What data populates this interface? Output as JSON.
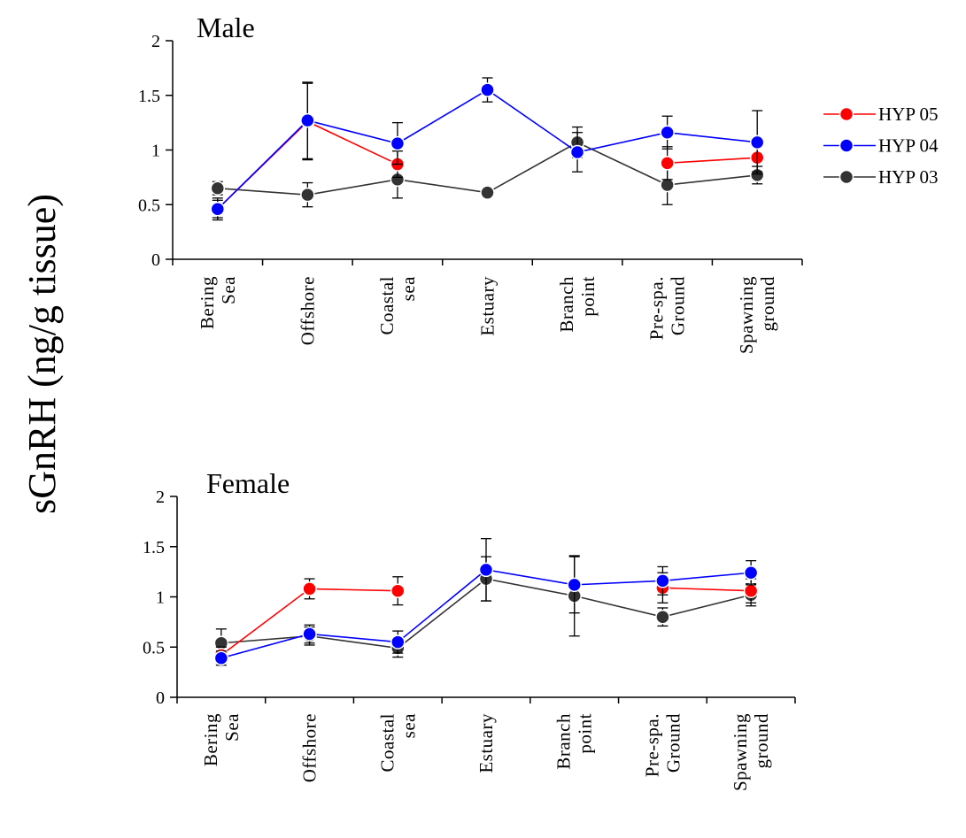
{
  "figure": {
    "ylabel": "sGnRH (ng/g tissue)"
  },
  "legend": {
    "position": "right",
    "entries": [
      {
        "series": "HYP 05",
        "color": "#ff0000"
      },
      {
        "series": "HYP 04",
        "color": "#0000ff"
      },
      {
        "series": "HYP 03",
        "color": "#333333"
      }
    ]
  },
  "chart_data": [
    {
      "type": "line",
      "title": "Male",
      "ylim": [
        0,
        2
      ],
      "yticks": [
        "0",
        "0.5",
        "1",
        "1.5",
        "2"
      ],
      "grid": false,
      "categories": [
        [
          "Bering",
          "Sea"
        ],
        [
          "Offshore"
        ],
        [
          "Coastal",
          "sea"
        ],
        [
          "Estuary"
        ],
        [
          "Branch",
          "point"
        ],
        [
          "Pre-spa.",
          "Ground"
        ],
        [
          "Spawning",
          "ground"
        ]
      ],
      "series": [
        {
          "name": "HYP 05",
          "color": "#ff0000",
          "values": [
            0.46,
            1.26,
            0.87,
            null,
            null,
            0.88,
            0.93
          ],
          "errors": [
            0.08,
            0.35,
            0.12,
            null,
            null,
            0.15,
            0.13
          ]
        },
        {
          "name": "HYP 04",
          "color": "#0000ff",
          "values": [
            0.46,
            1.27,
            1.06,
            1.55,
            0.98,
            1.16,
            1.07
          ],
          "errors": [
            0.1,
            0.35,
            0.19,
            0.11,
            0.18,
            0.15,
            0.29
          ]
        },
        {
          "name": "HYP 03",
          "color": "#333333",
          "values": [
            0.65,
            0.59,
            0.73,
            0.61,
            1.07,
            0.68,
            0.77
          ],
          "errors": [
            0.06,
            0.11,
            0.17,
            0.03,
            0.14,
            0.18,
            0.08
          ]
        }
      ]
    },
    {
      "type": "line",
      "title": "Female",
      "ylim": [
        0,
        2
      ],
      "yticks": [
        "0",
        "0.5",
        "1",
        "1.5",
        "2"
      ],
      "grid": false,
      "categories": [
        [
          "Bering",
          "Sea"
        ],
        [
          "Offshore"
        ],
        [
          "Coastal",
          "sea"
        ],
        [
          "Estuary"
        ],
        [
          "Branch",
          "point"
        ],
        [
          "Pre-spa.",
          "Ground"
        ],
        [
          "Spawning",
          "ground"
        ]
      ],
      "series": [
        {
          "name": "HYP 05",
          "color": "#ff0000",
          "values": [
            0.42,
            1.08,
            1.06,
            null,
            null,
            1.09,
            1.06
          ],
          "errors": [
            0.08,
            0.1,
            0.14,
            null,
            null,
            0.15,
            0.12
          ]
        },
        {
          "name": "HYP 04",
          "color": "#0000ff",
          "values": [
            0.39,
            0.63,
            0.55,
            1.27,
            1.12,
            1.16,
            1.24
          ],
          "errors": [
            0.07,
            0.09,
            0.11,
            0.31,
            0.28,
            0.14,
            0.12
          ]
        },
        {
          "name": "HYP 03",
          "color": "#333333",
          "values": [
            0.54,
            0.61,
            0.49,
            1.18,
            1.01,
            0.8,
            1.02
          ],
          "errors": [
            0.14,
            0.09,
            0.09,
            0.22,
            0.4,
            0.09,
            0.11
          ]
        }
      ]
    }
  ]
}
